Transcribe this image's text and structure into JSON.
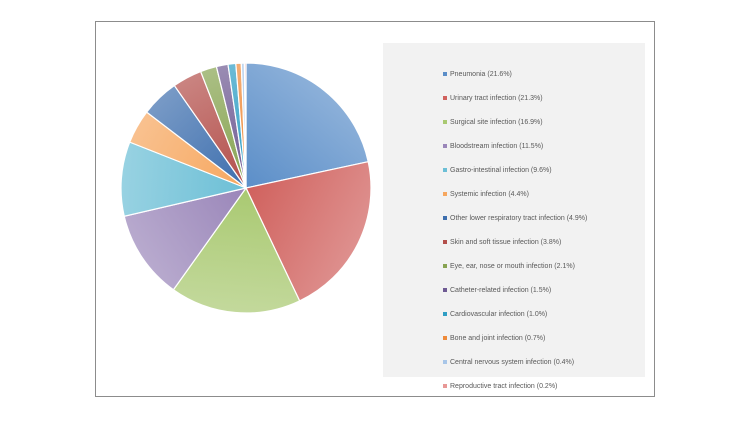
{
  "chart_data": {
    "type": "pie",
    "series": [
      {
        "name": "Pneumonia (21.6%)",
        "value": 21.6,
        "color": "#5b8ec8"
      },
      {
        "name": "Urinary tract infection (21.3%)",
        "value": 21.3,
        "color": "#d0615d"
      },
      {
        "name": "Surgical site infection (16.9%)",
        "value": 16.9,
        "color": "#a9c971"
      },
      {
        "name": "Bloodstream infection (11.5%)",
        "value": 11.5,
        "color": "#9a86b9"
      },
      {
        "name": "Gastro-intestinal infection (9.6%)",
        "value": 9.6,
        "color": "#6cbfd6"
      },
      {
        "name": "Systemic infection (4.4%)",
        "value": 4.4,
        "color": "#f6a75f"
      },
      {
        "name": "Other lower respiratory tract infection (4.9%)",
        "value": 4.9,
        "color": "#3e6fae"
      },
      {
        "name": "Skin and soft tissue infection (3.8%)",
        "value": 3.8,
        "color": "#b34f4b"
      },
      {
        "name": "Eye, ear, nose or mouth infection (2.1%)",
        "value": 2.1,
        "color": "#87a351"
      },
      {
        "name": "Catheter-related infection (1.5%)",
        "value": 1.5,
        "color": "#6e5a93"
      },
      {
        "name": "Cardiovascular infection (1.0%)",
        "value": 1.0,
        "color": "#2f9ec4"
      },
      {
        "name": "Bone and joint infection (0.7%)",
        "value": 0.7,
        "color": "#ee8a3a"
      },
      {
        "name": "Central nervous system infection (0.4%)",
        "value": 0.4,
        "color": "#a8c6e8"
      },
      {
        "name": "Reproductive tract infection (0.2%)",
        "value": 0.2,
        "color": "#e89896"
      }
    ],
    "start_angle": "12 o'clock",
    "direction": "clockwise",
    "legend": "right"
  }
}
